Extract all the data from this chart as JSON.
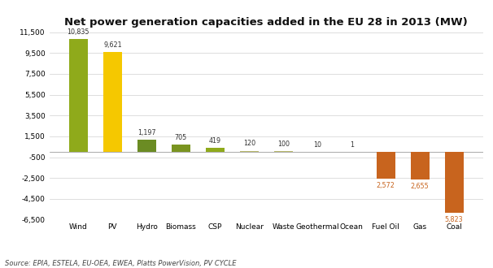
{
  "title": "Net power generation capacities added in the EU 28 in 2013 (MW)",
  "categories": [
    "Wind",
    "PV",
    "Hydro",
    "Biomass",
    "CSP",
    "Nuclear",
    "Waste",
    "Geothermal",
    "Ocean",
    "Fuel Oil",
    "Gas",
    "Coal"
  ],
  "values": [
    10835,
    9621,
    1197,
    705,
    419,
    120,
    100,
    10,
    1,
    -2572,
    -2655,
    -5823
  ],
  "bar_colors": [
    "#8faa1b",
    "#f5c800",
    "#6b8c23",
    "#7a9420",
    "#8faa1b",
    "#b8b86a",
    "#b8b86a",
    "#b8b86a",
    "#b8b86a",
    "#c8641e",
    "#c8641e",
    "#c8641e"
  ],
  "value_labels": [
    "10,835",
    "9,621",
    "1,197",
    "705",
    "419",
    "120",
    "100",
    "10",
    "1",
    "2,572",
    "2,655",
    "5,823"
  ],
  "label_colors": [
    "#333333",
    "#333333",
    "#333333",
    "#333333",
    "#333333",
    "#333333",
    "#333333",
    "#333333",
    "#333333",
    "#c8641e",
    "#c8641e",
    "#c8641e"
  ],
  "source": "Source: EPIA, ESTELA, EU-OEA, EWEA, Platts PowerVision, PV CYCLE",
  "ylim": [
    -6500,
    11500
  ],
  "ytick_vals": [
    -6500,
    -4500,
    -2500,
    -500,
    1500,
    3500,
    5500,
    7500,
    9500,
    11500
  ],
  "ytick_labels": [
    "-6,500",
    "-4,500",
    "-2,500",
    "-500",
    "1,500",
    "3,500",
    "5,500",
    "7,500",
    "9,500",
    "11,500"
  ],
  "background_color": "#ffffff",
  "grid_color": "#d0d0d0",
  "bar_width": 0.55,
  "title_fontsize": 9.5,
  "tick_fontsize": 6.5,
  "label_fontsize": 5.8,
  "source_fontsize": 6.0
}
